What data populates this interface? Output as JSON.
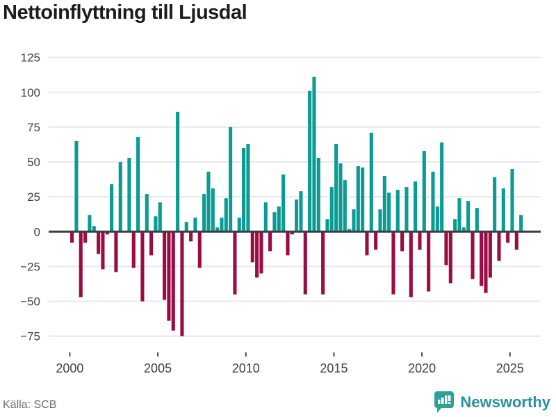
{
  "header": {
    "title": "Nettoinflyttning till Ljusdal"
  },
  "footer": {
    "source_label": "Källa: SCB",
    "brand_name": "Newsworthy",
    "brand_icon": "newsworthy-bar-chart-bubble-icon"
  },
  "chart_data": {
    "type": "bar",
    "title": "Nettoinflyttning till Ljusdal",
    "xlabel": "",
    "ylabel": "",
    "legend": false,
    "grid": true,
    "ylim": [
      -87,
      131
    ],
    "y_tick_values": [
      125,
      100,
      75,
      50,
      25,
      0,
      -25,
      -50,
      -75
    ],
    "y_tick_labels": [
      "125",
      "100",
      "75",
      "50",
      "25",
      "0",
      "−25",
      "−50",
      "−75"
    ],
    "x_tick_labels": [
      "2000",
      "2005",
      "2010",
      "2015",
      "2020",
      "2025"
    ],
    "colors": {
      "positive": "#0a9b93",
      "negative": "#9b0c45",
      "zero_line": "#3d3d42",
      "grid_line": "#e8e8e8"
    },
    "categories": [
      "2000Q1",
      "2000Q2",
      "2000Q3",
      "2000Q4",
      "2001Q1",
      "2001Q2",
      "2001Q3",
      "2001Q4",
      "2002Q1",
      "2002Q2",
      "2002Q3",
      "2002Q4",
      "2003Q1",
      "2003Q2",
      "2003Q3",
      "2003Q4",
      "2004Q1",
      "2004Q2",
      "2004Q3",
      "2004Q4",
      "2005Q1",
      "2005Q2",
      "2005Q3",
      "2005Q4",
      "2006Q1",
      "2006Q2",
      "2006Q3",
      "2006Q4",
      "2007Q1",
      "2007Q2",
      "2007Q3",
      "2007Q4",
      "2008Q1",
      "2008Q2",
      "2008Q3",
      "2008Q4",
      "2009Q1",
      "2009Q2",
      "2009Q3",
      "2009Q4",
      "2010Q1",
      "2010Q2",
      "2010Q3",
      "2010Q4",
      "2011Q1",
      "2011Q2",
      "2011Q3",
      "2011Q4",
      "2012Q1",
      "2012Q2",
      "2012Q3",
      "2012Q4",
      "2013Q1",
      "2013Q2",
      "2013Q3",
      "2013Q4",
      "2014Q1",
      "2014Q2",
      "2014Q3",
      "2014Q4",
      "2015Q1",
      "2015Q2",
      "2015Q3",
      "2015Q4",
      "2016Q1",
      "2016Q2",
      "2016Q3",
      "2016Q4",
      "2017Q1",
      "2017Q2",
      "2017Q3",
      "2017Q4",
      "2018Q1",
      "2018Q2",
      "2018Q3",
      "2018Q4",
      "2019Q1",
      "2019Q2",
      "2019Q3",
      "2019Q4",
      "2020Q1",
      "2020Q2",
      "2020Q3",
      "2020Q4",
      "2021Q1",
      "2021Q2",
      "2021Q3",
      "2021Q4",
      "2022Q1",
      "2022Q2",
      "2022Q3",
      "2022Q4",
      "2023Q1",
      "2023Q2",
      "2023Q3",
      "2023Q4",
      "2024Q1",
      "2024Q2",
      "2024Q3",
      "2024Q4",
      "2025Q1",
      "2025Q2",
      "2025Q3"
    ],
    "values": [
      -8,
      65,
      -47,
      -8,
      12,
      4,
      -16,
      -27,
      -2,
      34,
      -29,
      50,
      0,
      53,
      -26,
      68,
      -50,
      27,
      -17,
      11,
      21,
      -49,
      -64,
      -71,
      86,
      -75,
      7,
      -7,
      10,
      -26,
      27,
      43,
      31,
      3,
      10,
      24,
      75,
      -45,
      10,
      60,
      63,
      -22,
      -33,
      -30,
      21,
      -14,
      14,
      18,
      41,
      -17,
      -2,
      23,
      29,
      -45,
      101,
      111,
      53,
      -45,
      9,
      32,
      63,
      49,
      37,
      2,
      16,
      47,
      46,
      -17,
      71,
      -13,
      16,
      40,
      28,
      -45,
      30,
      -14,
      32,
      -47,
      36,
      -13,
      58,
      -43,
      43,
      18,
      64,
      -24,
      -37,
      9,
      24,
      3,
      22,
      -34,
      17,
      -39,
      -44,
      -33,
      39,
      -21,
      31,
      -8,
      45,
      -13,
      12
    ]
  }
}
